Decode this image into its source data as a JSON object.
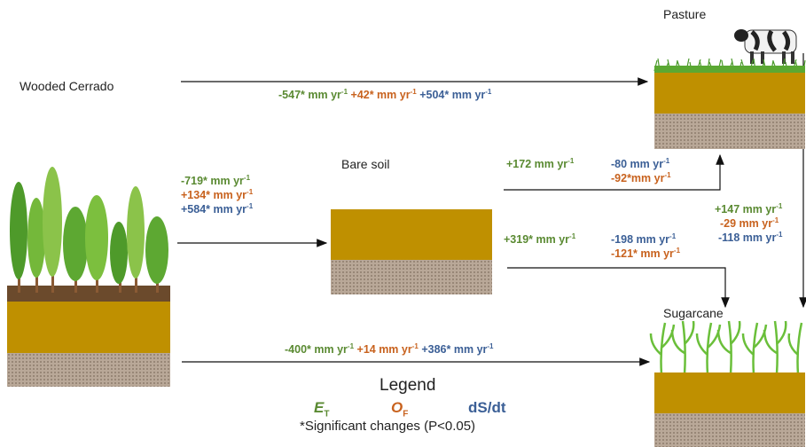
{
  "nodes": {
    "wooded": "Wooded Cerrado",
    "pasture": "Pasture",
    "bare": "Bare soil",
    "sugarcane": "Sugarcane"
  },
  "flows": {
    "wooded_to_pasture": {
      "et": "-547* mm",
      "of": "+42* mm",
      "ds": "+504* mm"
    },
    "wooded_to_bare": {
      "et": "-719* mm",
      "of": "+134* mm",
      "ds": "+584* mm"
    },
    "wooded_to_sugarcane": {
      "et": "-400* mm",
      "of": "+14 mm",
      "ds": "+386* mm"
    },
    "bare_to_pasture": {
      "et": "+172 mm",
      "of": "-92*mm",
      "ds": "-80 mm"
    },
    "bare_to_sugarcane": {
      "et": "+319* mm",
      "of": "-121* mm",
      "ds": "-198 mm"
    },
    "pasture_to_sugarcane": {
      "et": "+147 mm",
      "of": "-29 mm",
      "ds": "-118 mm"
    }
  },
  "unit": "yr",
  "unit_exp": "-1",
  "legend": {
    "title": "Legend",
    "et": "E",
    "et_sub": "T",
    "of": "O",
    "of_sub": "F",
    "ds": "dS/dt",
    "note": "*Significant changes (P<0.05)"
  },
  "colors": {
    "et": "#5a8a32",
    "of": "#c8621e",
    "ds": "#3b5f96",
    "soil": "#bf9000"
  },
  "icons": [
    "tree-icon",
    "cow-icon",
    "grass-icon",
    "sugarcane-icon"
  ]
}
